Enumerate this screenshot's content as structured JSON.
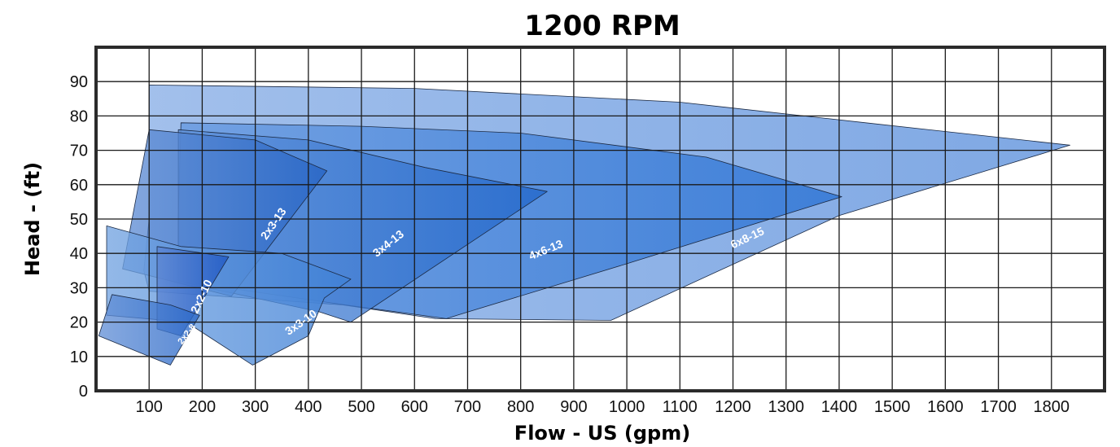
{
  "chart_data": {
    "type": "area",
    "title": "1200 RPM",
    "xlabel": "Flow - US (gpm)",
    "ylabel": "Head - (ft)",
    "xlim": [
      0,
      1900
    ],
    "ylim": [
      0,
      100
    ],
    "xticks": [
      100,
      200,
      300,
      400,
      500,
      600,
      700,
      800,
      900,
      1000,
      1100,
      1200,
      1300,
      1400,
      1500,
      1600,
      1700,
      1800
    ],
    "yticks": [
      0,
      10,
      20,
      30,
      40,
      50,
      60,
      70,
      80,
      90
    ],
    "grid": true,
    "series": [
      {
        "name": "6x8-15",
        "color": "#5a8fdc",
        "points": [
          [
            100,
            89
          ],
          [
            600,
            88
          ],
          [
            1100,
            84
          ],
          [
            1450,
            78
          ],
          [
            1835,
            71.5
          ],
          [
            1400,
            51
          ],
          [
            970,
            20.5
          ],
          [
            640,
            21
          ],
          [
            465,
            25
          ],
          [
            100,
            29
          ],
          [
            90,
            35
          ],
          [
            100,
            50
          ]
        ],
        "label_at": [
          1230,
          43.5
        ],
        "label_angle": -25
      },
      {
        "name": "4x6-13",
        "color": "#2a72d4",
        "points": [
          [
            160,
            78
          ],
          [
            500,
            77
          ],
          [
            800,
            75
          ],
          [
            1150,
            68
          ],
          [
            1405,
            56.5
          ],
          [
            1000,
            37
          ],
          [
            680,
            22
          ],
          [
            660,
            21
          ],
          [
            470,
            25
          ],
          [
            155,
            32
          ],
          [
            155,
            50
          ]
        ],
        "label_at": [
          850,
          40
        ],
        "label_angle": -22
      },
      {
        "name": "3x4-13",
        "color": "#2166ca",
        "points": [
          [
            155,
            76
          ],
          [
            400,
            73
          ],
          [
            620,
            65
          ],
          [
            850,
            58
          ],
          [
            480,
            20
          ],
          [
            420,
            23
          ],
          [
            210,
            30
          ],
          [
            155,
            32
          ]
        ],
        "label_at": [
          555,
          42
        ],
        "label_angle": -38
      },
      {
        "name": "2x3-13",
        "color": "#2563c4",
        "points": [
          [
            100,
            76
          ],
          [
            300,
            73
          ],
          [
            435,
            64
          ],
          [
            255,
            27.5
          ],
          [
            50,
            35.5
          ]
        ],
        "label_at": [
          340,
          48
        ],
        "label_angle": -55
      },
      {
        "name": "3x3-10",
        "color": "#3e80d6",
        "points": [
          [
            20,
            48
          ],
          [
            160,
            42
          ],
          [
            350,
            40
          ],
          [
            480,
            32.5
          ],
          [
            430,
            27
          ],
          [
            400,
            16
          ],
          [
            295,
            7.5
          ],
          [
            170,
            20
          ],
          [
            20,
            22
          ]
        ],
        "label_at": [
          390,
          19
        ],
        "label_angle": -35
      },
      {
        "name": "2x2-10",
        "color": "#1c55c2",
        "points": [
          [
            115,
            42
          ],
          [
            250,
            39
          ],
          [
            160,
            16
          ],
          [
            115,
            18
          ]
        ],
        "label_at": [
          205,
          27
        ],
        "label_angle": -65
      },
      {
        "name": "2x2-8",
        "color": "#2a68c8",
        "points": [
          [
            30,
            28
          ],
          [
            140,
            25
          ],
          [
            195,
            22
          ],
          [
            140,
            7.5
          ],
          [
            5,
            16
          ]
        ],
        "label_at": [
          175,
          16
        ],
        "label_angle": -52
      }
    ]
  }
}
